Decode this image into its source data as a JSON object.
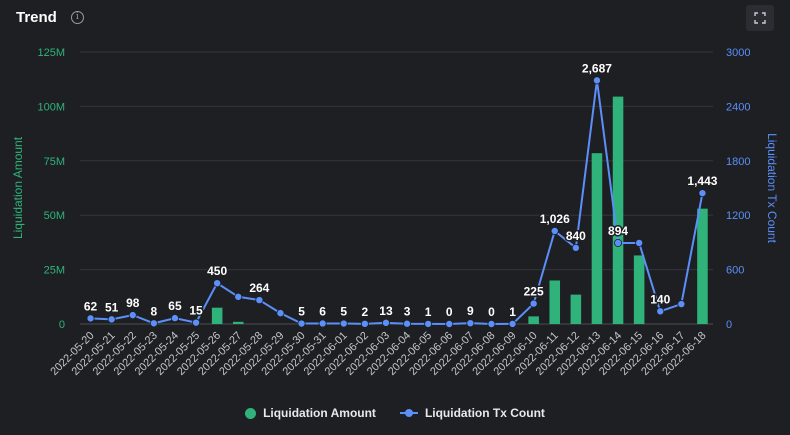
{
  "header": {
    "title": "Trend",
    "info_icon": "info-icon",
    "expand_icon": "expand-icon"
  },
  "legend": {
    "amount_label": "Liquidation Amount",
    "count_label": "Liquidation Tx Count"
  },
  "colors": {
    "amount": "#2fb37a",
    "count": "#5b8ff9",
    "grid": "#34363d",
    "text": "#9a9ca3"
  },
  "chart_data": {
    "type": "bar+line",
    "categories": [
      "2022-05-20",
      "2022-05-21",
      "2022-05-22",
      "2022-05-23",
      "2022-05-24",
      "2022-05-25",
      "2022-05-26",
      "2022-05-27",
      "2022-05-28",
      "2022-05-29",
      "2022-05-30",
      "2022-05-31",
      "2022-06-01",
      "2022-06-02",
      "2022-06-03",
      "2022-06-04",
      "2022-06-05",
      "2022-06-06",
      "2022-06-07",
      "2022-06-08",
      "2022-06-09",
      "2022-06-10",
      "2022-06-11",
      "2022-06-12",
      "2022-06-13",
      "2022-06-14",
      "2022-06-15",
      "2022-06-16",
      "2022-06-17",
      "2022-06-18"
    ],
    "series": [
      {
        "name": "Liquidation Amount",
        "axis": "left",
        "type": "bar",
        "values": [
          0,
          0,
          0,
          0,
          0,
          0,
          7500000,
          1000000,
          0,
          0,
          0,
          0,
          0,
          0,
          0,
          0,
          0,
          0,
          0,
          0,
          0,
          3500000,
          20000000,
          13500000,
          78500000,
          104500000,
          31500000,
          0,
          0,
          53000000
        ]
      },
      {
        "name": "Liquidation Tx Count",
        "axis": "right",
        "type": "line",
        "values": [
          62,
          51,
          98,
          8,
          65,
          15,
          450,
          300,
          264,
          120,
          5,
          6,
          5,
          2,
          13,
          3,
          1,
          0,
          9,
          0,
          1,
          225,
          1026,
          840,
          2687,
          894,
          894,
          140,
          220,
          1443
        ]
      }
    ],
    "labeled_indices": [
      0,
      1,
      2,
      3,
      4,
      5,
      6,
      8,
      10,
      11,
      12,
      13,
      14,
      15,
      16,
      17,
      18,
      19,
      20,
      21,
      22,
      23,
      24,
      25,
      27,
      29
    ],
    "point_labels": {
      "0": "62",
      "1": "51",
      "2": "98",
      "3": "8",
      "4": "65",
      "5": "15",
      "6": "450",
      "8": "264",
      "10": "5",
      "11": "6",
      "12": "5",
      "13": "2",
      "14": "13",
      "15": "3",
      "16": "1",
      "17": "0",
      "18": "9",
      "19": "0",
      "20": "1",
      "21": "225",
      "22": "1,026",
      "23": "840",
      "24": "2,687",
      "25": "894",
      "27": "140",
      "29": "1,443"
    },
    "ylabel_left": "Liquidation Amount",
    "ylabel_right": "Liquidation Tx Count",
    "ylim_left": [
      0,
      125000000
    ],
    "ylim_right": [
      0,
      3000
    ],
    "yticks_left": [
      "0",
      "25M",
      "50M",
      "75M",
      "100M",
      "125M"
    ],
    "yticks_right": [
      "0",
      "600",
      "1200",
      "1800",
      "2400",
      "3000"
    ],
    "grid": true,
    "legend_position": "bottom"
  }
}
